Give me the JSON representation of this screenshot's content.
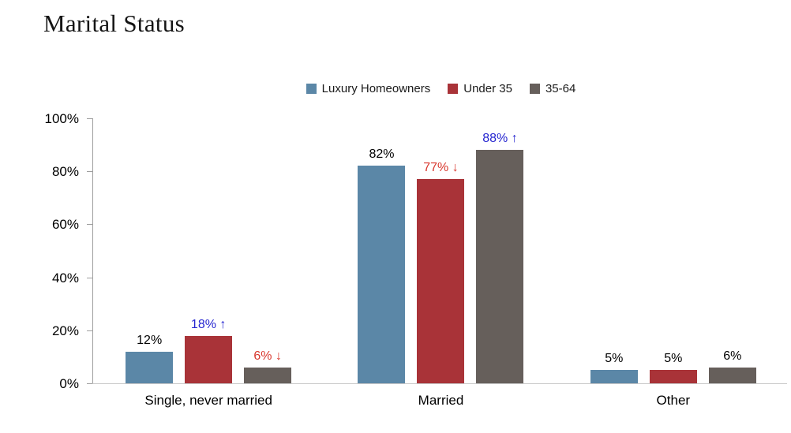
{
  "page": {
    "title": "Marital Status"
  },
  "chart_data": {
    "type": "bar",
    "title": "Marital Status",
    "categories": [
      "Single, never married",
      "Married",
      "Other"
    ],
    "series": [
      {
        "name": "Luxury Homeowners",
        "color": "#5b87a7",
        "values": [
          12,
          82,
          5
        ],
        "labels": [
          "12%",
          "82%",
          "5%"
        ],
        "label_colors": [
          "black",
          "black",
          "black"
        ]
      },
      {
        "name": "Under 35",
        "color": "#a93338",
        "values": [
          18,
          77,
          5
        ],
        "labels": [
          "18% ↑",
          "77% ↓",
          "5%"
        ],
        "label_colors": [
          "blue",
          "red",
          "black"
        ]
      },
      {
        "name": "35-64",
        "color": "#665f5b",
        "values": [
          6,
          88,
          6
        ],
        "labels": [
          "6% ↓",
          "88% ↑",
          "6%"
        ],
        "label_colors": [
          "red",
          "blue",
          "black"
        ]
      }
    ],
    "ylim": [
      0,
      100
    ],
    "yticks": [
      {
        "value": 0,
        "label": "0%"
      },
      {
        "value": 20,
        "label": "20%"
      },
      {
        "value": 40,
        "label": "40%"
      },
      {
        "value": 60,
        "label": "60%"
      },
      {
        "value": 80,
        "label": "80%"
      },
      {
        "value": 100,
        "label": "100%"
      }
    ],
    "legend_position": "top-center",
    "grid": false,
    "annotation_colors": {
      "black": "#000000",
      "blue": "#2626d0",
      "red": "#d8382e"
    },
    "axis_color": "#9e9e9e",
    "baseline_color": "#c8c8c8"
  }
}
